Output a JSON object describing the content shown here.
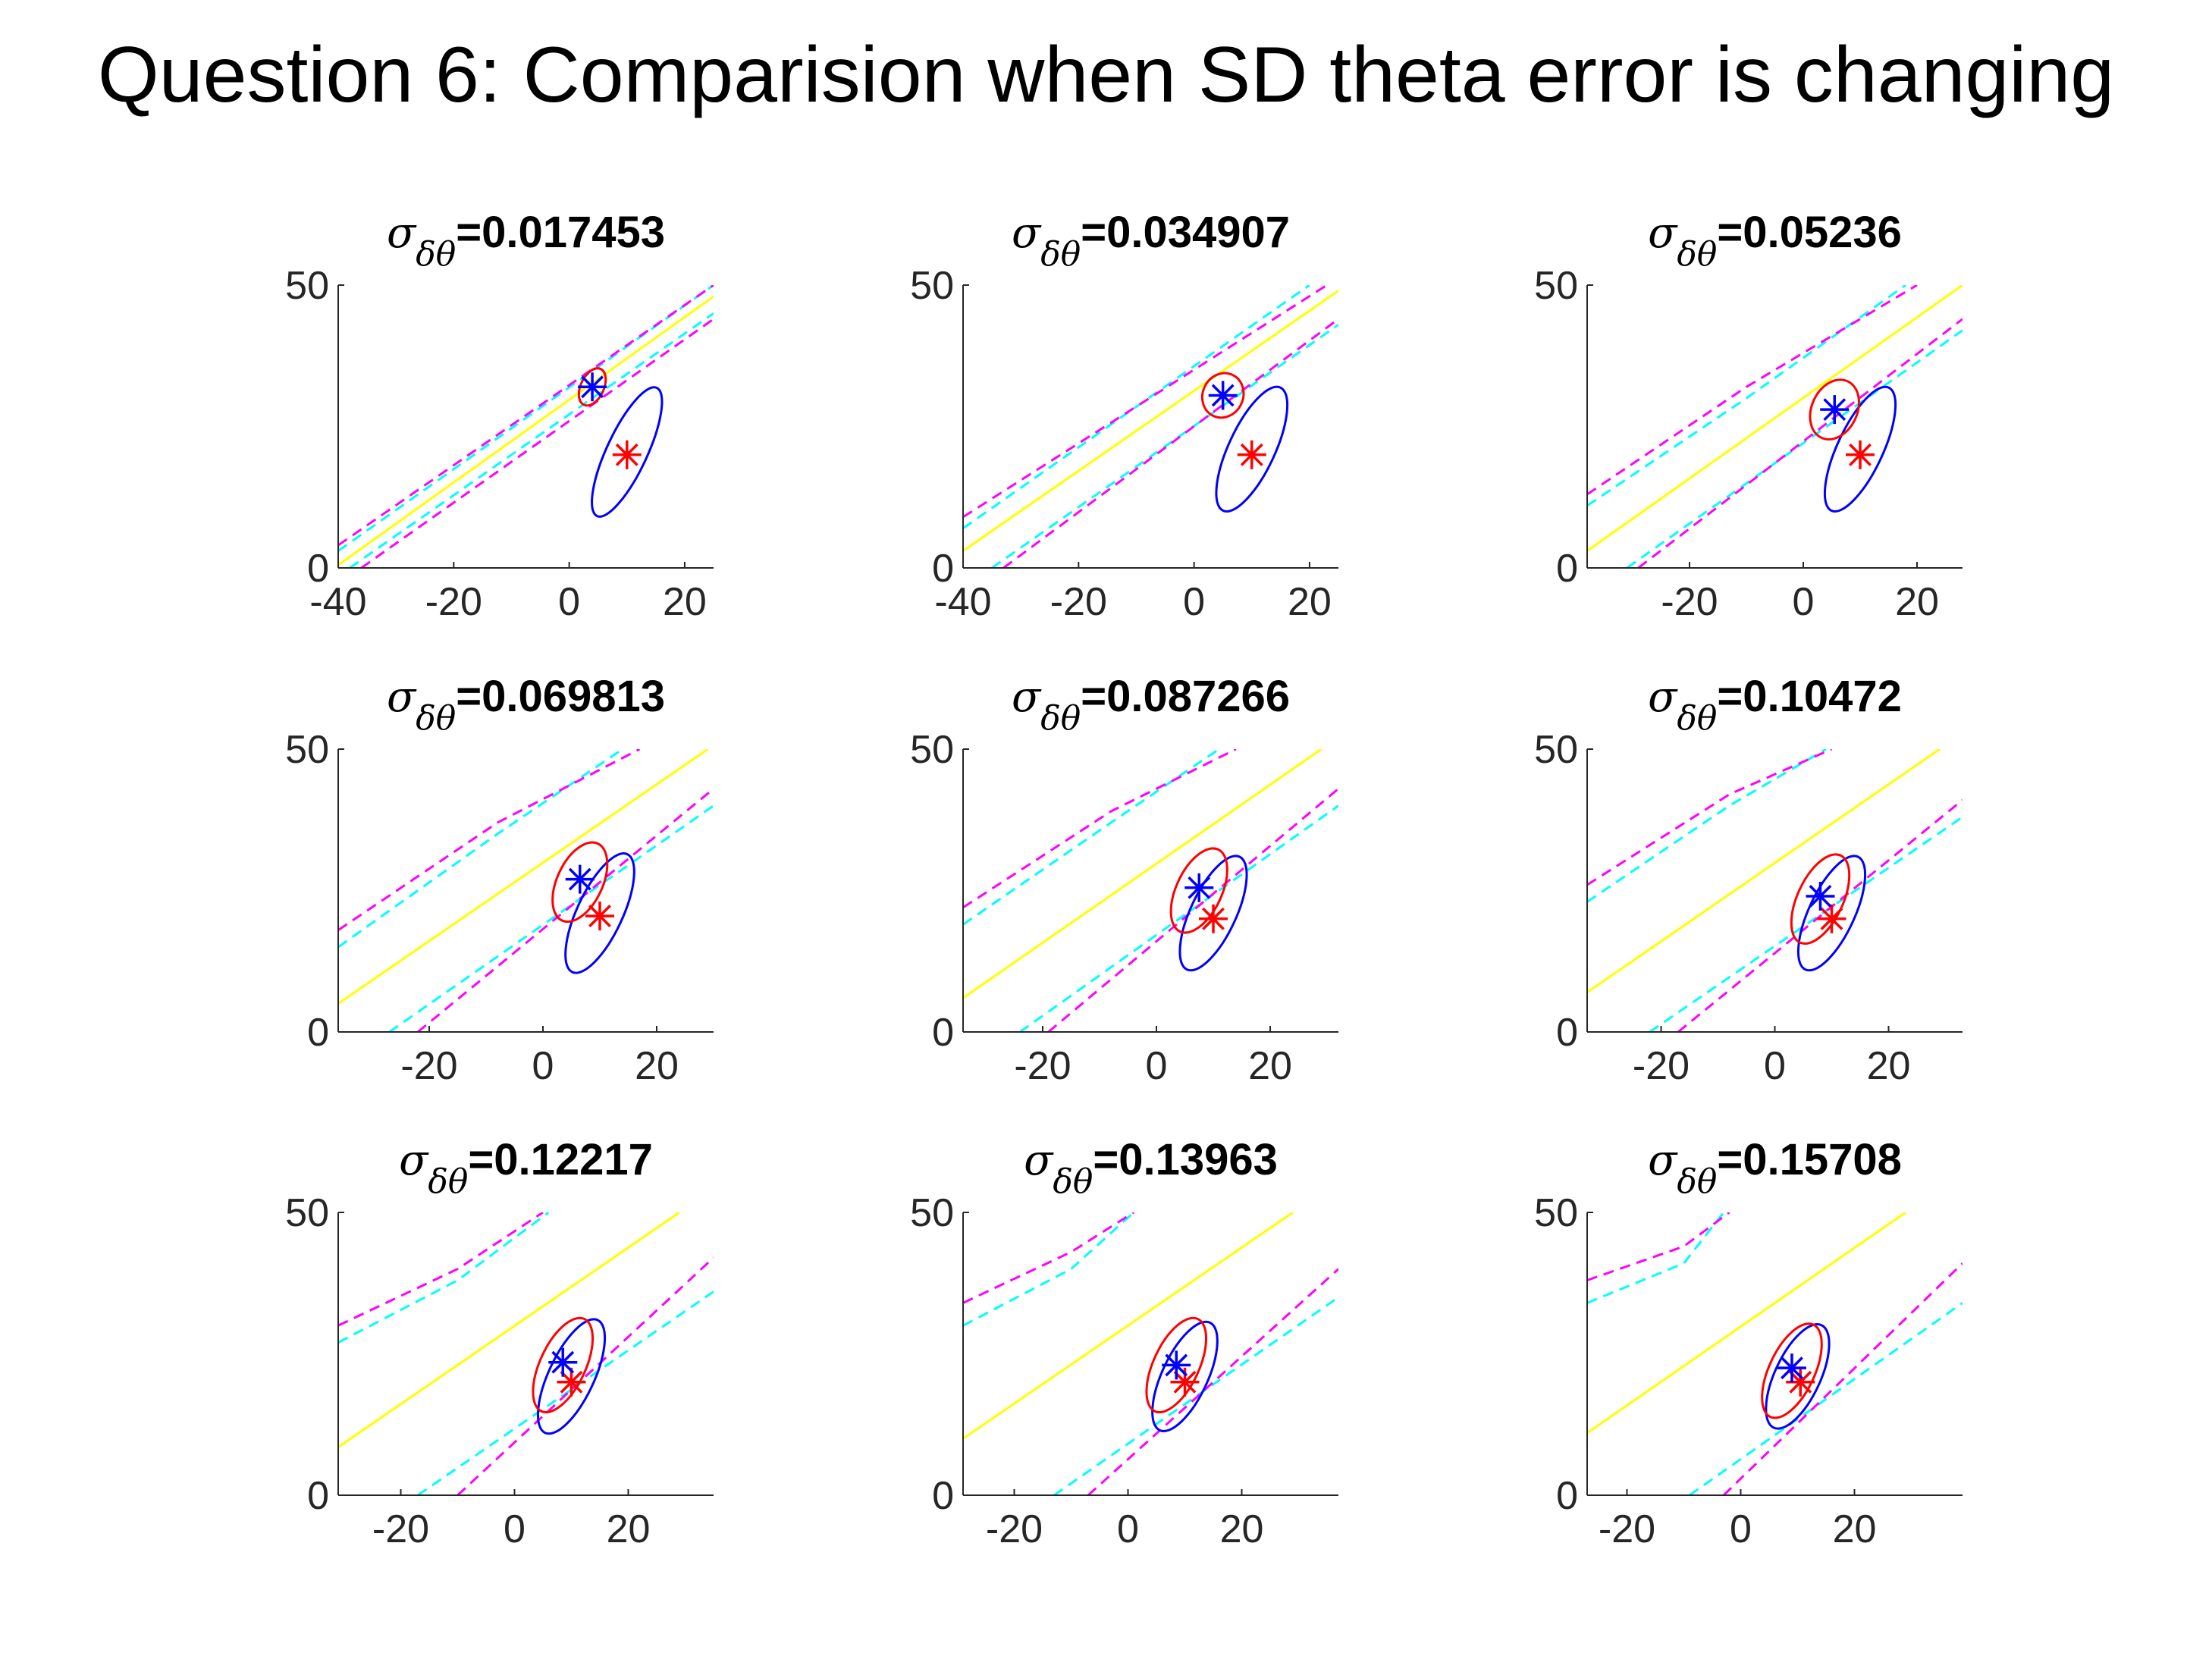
{
  "figure": {
    "title": "Question 6: Comparision when SD theta error is changing"
  },
  "colors": {
    "blue": "#0000ff",
    "red": "#ff0000",
    "yellow": "#ffff00",
    "cyan": "#00ffff",
    "magenta": "#ff00ff",
    "axis": "#262626"
  },
  "chart_data": [
    {
      "type": "line",
      "title_symbol": "σ",
      "title_subscript": "δθ",
      "title_value": "=0.017453",
      "xlim": [
        -40,
        25
      ],
      "ylim": [
        0,
        50
      ],
      "xticks": [
        -40,
        -20,
        0,
        20
      ],
      "yticks": [
        0,
        50
      ],
      "center_line": [
        [
          -40,
          0.5
        ],
        [
          25,
          48
        ]
      ],
      "cyan_bounds": [
        [
          [
            -40,
            3
          ],
          [
            25,
            50
          ]
        ],
        [
          [
            -38,
            0
          ],
          [
            25,
            45
          ]
        ]
      ],
      "magenta_bounds": [
        [
          [
            -40,
            4
          ],
          [
            25,
            50
          ]
        ],
        [
          [
            -36,
            0
          ],
          [
            25,
            44
          ]
        ]
      ],
      "blue_star": [
        4,
        32
      ],
      "red_star": [
        10,
        20
      ],
      "red_ellipse": {
        "cx": 4,
        "cy": 32,
        "rx": 2,
        "ry": 3.5,
        "angle": 25
      },
      "blue_ellipse": {
        "cx": 10,
        "cy": 20.5,
        "rx": 3.5,
        "ry": 12.5,
        "angle": 25
      }
    },
    {
      "type": "line",
      "title_symbol": "σ",
      "title_subscript": "δθ",
      "title_value": "=0.034907",
      "xlim": [
        -40,
        25
      ],
      "ylim": [
        0,
        50
      ],
      "xticks": [
        -40,
        -20,
        0,
        20
      ],
      "yticks": [
        0,
        50
      ],
      "center_line": [
        [
          -40,
          3
        ],
        [
          25,
          49
        ]
      ],
      "cyan_bounds": [
        [
          [
            -40,
            7
          ],
          [
            20,
            50
          ]
        ],
        [
          [
            -35,
            0
          ],
          [
            25,
            43
          ]
        ]
      ],
      "magenta_bounds": [
        [
          [
            -40,
            9
          ],
          [
            23,
            50
          ]
        ],
        [
          [
            -33,
            0
          ],
          [
            25,
            44
          ]
        ]
      ],
      "blue_star": [
        5,
        30.5
      ],
      "red_star": [
        10,
        20
      ],
      "red_ellipse": {
        "cx": 5,
        "cy": 30.5,
        "rx": 3.5,
        "ry": 4,
        "angle": 25
      },
      "blue_ellipse": {
        "cx": 10,
        "cy": 21,
        "rx": 4,
        "ry": 12,
        "angle": 25
      }
    },
    {
      "type": "line",
      "title_symbol": "σ",
      "title_subscript": "δθ",
      "title_value": "=0.05236",
      "xlim": [
        -38,
        28
      ],
      "ylim": [
        0,
        50
      ],
      "xticks": [
        -20,
        0,
        20
      ],
      "yticks": [
        0,
        50
      ],
      "center_line": [
        [
          -38,
          3
        ],
        [
          28,
          50
        ]
      ],
      "cyan_bounds": [
        [
          [
            -38,
            11
          ],
          [
            -10,
            30
          ],
          [
            18,
            50
          ]
        ],
        [
          [
            -31,
            0
          ],
          [
            28,
            42
          ]
        ]
      ],
      "magenta_bounds": [
        [
          [
            -38,
            13
          ],
          [
            -10,
            32
          ],
          [
            20,
            50
          ]
        ],
        [
          [
            -29,
            0
          ],
          [
            28,
            44
          ]
        ]
      ],
      "blue_star": [
        5.5,
        28
      ],
      "red_star": [
        10,
        20
      ],
      "red_ellipse": {
        "cx": 5.5,
        "cy": 28,
        "rx": 4,
        "ry": 5.5,
        "angle": 25
      },
      "blue_ellipse": {
        "cx": 10,
        "cy": 21,
        "rx": 4,
        "ry": 12,
        "angle": 25
      }
    },
    {
      "type": "line",
      "title_symbol": "σ",
      "title_subscript": "δθ",
      "title_value": "=0.069813",
      "xlim": [
        -36,
        30
      ],
      "ylim": [
        0,
        50
      ],
      "xticks": [
        -20,
        0,
        20
      ],
      "yticks": [
        0,
        50
      ],
      "center_line": [
        [
          -36,
          5
        ],
        [
          29,
          50
        ]
      ],
      "cyan_bounds": [
        [
          [
            -36,
            15
          ],
          [
            -8,
            35
          ],
          [
            14,
            50
          ]
        ],
        [
          [
            -27,
            0
          ],
          [
            30,
            40
          ]
        ]
      ],
      "magenta_bounds": [
        [
          [
            -36,
            18
          ],
          [
            -8,
            37
          ],
          [
            17,
            50
          ]
        ],
        [
          [
            -22,
            0
          ],
          [
            30,
            43
          ]
        ]
      ],
      "blue_star": [
        6.5,
        27
      ],
      "red_star": [
        10,
        20.5
      ],
      "red_ellipse": {
        "cx": 6.5,
        "cy": 26.5,
        "rx": 4,
        "ry": 7.5,
        "angle": 25
      },
      "blue_ellipse": {
        "cx": 10,
        "cy": 21,
        "rx": 4,
        "ry": 11.5,
        "angle": 25
      }
    },
    {
      "type": "line",
      "title_symbol": "σ",
      "title_subscript": "δθ",
      "title_value": "=0.087266",
      "xlim": [
        -34,
        32
      ],
      "ylim": [
        0,
        50
      ],
      "xticks": [
        -20,
        0,
        20
      ],
      "yticks": [
        0,
        50
      ],
      "center_line": [
        [
          -34,
          6
        ],
        [
          29,
          50
        ]
      ],
      "cyan_bounds": [
        [
          [
            -34,
            19
          ],
          [
            -8,
            37
          ],
          [
            11,
            50
          ]
        ],
        [
          [
            -24,
            0
          ],
          [
            32,
            40
          ]
        ]
      ],
      "magenta_bounds": [
        [
          [
            -34,
            22
          ],
          [
            -8,
            39
          ],
          [
            14,
            50
          ]
        ],
        [
          [
            -19,
            0
          ],
          [
            32,
            43
          ]
        ]
      ],
      "blue_star": [
        7.5,
        25.5
      ],
      "red_star": [
        10,
        20
      ],
      "red_ellipse": {
        "cx": 7.5,
        "cy": 25,
        "rx": 4,
        "ry": 8,
        "angle": 25
      },
      "blue_ellipse": {
        "cx": 10,
        "cy": 21,
        "rx": 4,
        "ry": 11,
        "angle": 25
      }
    },
    {
      "type": "line",
      "title_symbol": "σ",
      "title_subscript": "δθ",
      "title_value": "=0.10472",
      "xlim": [
        -33,
        33
      ],
      "ylim": [
        0,
        50
      ],
      "xticks": [
        -20,
        0,
        20
      ],
      "yticks": [
        0,
        50
      ],
      "center_line": [
        [
          -33,
          7
        ],
        [
          29,
          50
        ]
      ],
      "cyan_bounds": [
        [
          [
            -33,
            23
          ],
          [
            -8,
            40
          ],
          [
            9,
            50
          ]
        ],
        [
          [
            -22,
            0
          ],
          [
            33,
            38
          ]
        ]
      ],
      "magenta_bounds": [
        [
          [
            -33,
            26
          ],
          [
            -8,
            42
          ],
          [
            10,
            50
          ]
        ],
        [
          [
            -17,
            0
          ],
          [
            33,
            41
          ]
        ]
      ],
      "blue_star": [
        8,
        24
      ],
      "red_star": [
        10,
        20
      ],
      "red_ellipse": {
        "cx": 8,
        "cy": 23.5,
        "rx": 4,
        "ry": 8.5,
        "angle": 25
      },
      "blue_ellipse": {
        "cx": 10,
        "cy": 21,
        "rx": 4,
        "ry": 11,
        "angle": 25
      }
    },
    {
      "type": "line",
      "title_symbol": "σ",
      "title_subscript": "δθ",
      "title_value": "=0.12217",
      "xlim": [
        -31,
        35
      ],
      "ylim": [
        0,
        50
      ],
      "xticks": [
        -20,
        0,
        20
      ],
      "yticks": [
        0,
        50
      ],
      "center_line": [
        [
          -31,
          8.5
        ],
        [
          29,
          50
        ]
      ],
      "cyan_bounds": [
        [
          [
            -31,
            27
          ],
          [
            -10,
            38
          ],
          [
            6,
            50
          ]
        ],
        [
          [
            -17,
            0
          ],
          [
            35,
            36
          ]
        ]
      ],
      "magenta_bounds": [
        [
          [
            -31,
            30
          ],
          [
            -10,
            40
          ],
          [
            5,
            50
          ]
        ],
        [
          [
            -10,
            0
          ],
          [
            35,
            42
          ]
        ]
      ],
      "blue_star": [
        8.5,
        23.5
      ],
      "red_star": [
        10,
        20
      ],
      "red_ellipse": {
        "cx": 8.5,
        "cy": 23,
        "rx": 4,
        "ry": 9,
        "angle": 25
      },
      "blue_ellipse": {
        "cx": 10,
        "cy": 21,
        "rx": 4,
        "ry": 11,
        "angle": 25
      }
    },
    {
      "type": "line",
      "title_symbol": "σ",
      "title_subscript": "δθ",
      "title_value": "=0.13963",
      "xlim": [
        -29,
        37
      ],
      "ylim": [
        0,
        50
      ],
      "xticks": [
        -20,
        0,
        20
      ],
      "yticks": [
        0,
        50
      ],
      "center_line": [
        [
          -29,
          10
        ],
        [
          29,
          50
        ]
      ],
      "cyan_bounds": [
        [
          [
            -29,
            30
          ],
          [
            -10,
            40
          ],
          [
            1,
            50
          ]
        ],
        [
          [
            -13,
            0
          ],
          [
            37,
            35
          ]
        ]
      ],
      "magenta_bounds": [
        [
          [
            -29,
            34
          ],
          [
            -10,
            43
          ],
          [
            1,
            50
          ]
        ],
        [
          [
            -7,
            0
          ],
          [
            37,
            40
          ]
        ]
      ],
      "blue_star": [
        8.5,
        23
      ],
      "red_star": [
        10,
        20
      ],
      "red_ellipse": {
        "cx": 8.5,
        "cy": 23,
        "rx": 4,
        "ry": 9,
        "angle": 25
      },
      "blue_ellipse": {
        "cx": 10,
        "cy": 21,
        "rx": 4,
        "ry": 10.5,
        "angle": 25
      }
    },
    {
      "type": "line",
      "title_symbol": "σ",
      "title_subscript": "δθ",
      "title_value": "=0.15708",
      "xlim": [
        -27,
        39
      ],
      "ylim": [
        0,
        50
      ],
      "xticks": [
        -20,
        0,
        20
      ],
      "yticks": [
        0,
        50
      ],
      "center_line": [
        [
          -27,
          11
        ],
        [
          29,
          50
        ]
      ],
      "cyan_bounds": [
        [
          [
            -27,
            34
          ],
          [
            -10,
            41
          ],
          [
            -3,
            50
          ]
        ],
        [
          [
            -9,
            0
          ],
          [
            39,
            34
          ]
        ]
      ],
      "magenta_bounds": [
        [
          [
            -27,
            38
          ],
          [
            -10,
            44
          ],
          [
            -2,
            50
          ]
        ],
        [
          [
            -3,
            0
          ],
          [
            39,
            41
          ]
        ]
      ],
      "blue_star": [
        9,
        22.5
      ],
      "red_star": [
        10.5,
        20
      ],
      "red_ellipse": {
        "cx": 9,
        "cy": 22,
        "rx": 4,
        "ry": 9,
        "angle": 25
      },
      "blue_ellipse": {
        "cx": 10,
        "cy": 21,
        "rx": 4,
        "ry": 10,
        "angle": 25
      }
    }
  ]
}
